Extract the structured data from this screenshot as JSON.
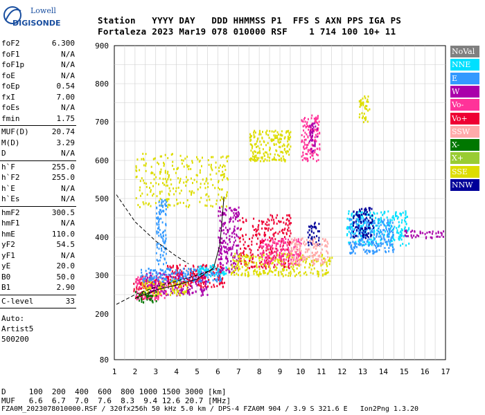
{
  "logo": {
    "top": "Lowell",
    "bottom": "DIGISONDE"
  },
  "header": {
    "line1": "Station   YYYY DAY   DDD HHMMSS P1  FFS S AXN PPS IGA PS",
    "line2": "Fortaleza 2023 Mar19 078 010000 RSF    1 714 100 10+ 11"
  },
  "params": [
    {
      "label": "foF2",
      "value": "6.300"
    },
    {
      "label": "foF1",
      "value": "N/A"
    },
    {
      "label": "foF1p",
      "value": "N/A"
    },
    {
      "label": "foE",
      "value": "N/A"
    },
    {
      "label": "foEp",
      "value": "0.54"
    },
    {
      "label": "fxI",
      "value": "7.00"
    },
    {
      "label": "foEs",
      "value": "N/A"
    },
    {
      "label": "fmin",
      "value": "1.75"
    },
    {
      "label": "MUF(D)",
      "value": "20.74"
    },
    {
      "label": "M(D)",
      "value": "3.29"
    },
    {
      "label": "D",
      "value": "N/A"
    },
    {
      "label": "h`F",
      "value": "255.0"
    },
    {
      "label": "h`F2",
      "value": "255.0"
    },
    {
      "label": "h`E",
      "value": "N/A"
    },
    {
      "label": "h`Es",
      "value": "N/A"
    },
    {
      "label": "hmF2",
      "value": "300.5"
    },
    {
      "label": "hmF1",
      "value": "N/A"
    },
    {
      "label": "hmE",
      "value": "110.0"
    },
    {
      "label": "yF2",
      "value": "54.5"
    },
    {
      "label": "yF1",
      "value": "N/A"
    },
    {
      "label": "yE",
      "value": "20.0"
    },
    {
      "label": "B0",
      "value": "50.0"
    },
    {
      "label": "B1",
      "value": "2.90"
    },
    {
      "label": "C-level",
      "value": "33"
    }
  ],
  "auto": {
    "label": "Auto:",
    "name": "Artist5",
    "version": "500200"
  },
  "legend": [
    {
      "label": "NoVal",
      "color": "#808080"
    },
    {
      "label": "NNE",
      "color": "#00e0ff"
    },
    {
      "label": "E",
      "color": "#3399ff"
    },
    {
      "label": "W",
      "color": "#aa00aa"
    },
    {
      "label": "Vo-",
      "color": "#ff3399"
    },
    {
      "label": "Vo+",
      "color": "#ee0033"
    },
    {
      "label": "SSW",
      "color": "#ffaaaa"
    },
    {
      "label": "X-",
      "color": "#007700"
    },
    {
      "label": "X+",
      "color": "#99cc33"
    },
    {
      "label": "SSE",
      "color": "#dddd00"
    },
    {
      "label": "NNW",
      "color": "#000099"
    }
  ],
  "footer": {
    "d_row": "D     100  200  400  600  800 1000 1500 3000 [km]",
    "muf_row": "MUF   6.6  6.7  7.0  7.6  8.3  9.4 12.6 20.7 [MHz]",
    "file_line": "FZA0M_2023078010000.RSF / 320fx256h 50 kHz 5.0 km / DPS-4 FZA0M 904 / 3.9 S 321.6 E   Ion2Png 1.3.20"
  },
  "chart_data": {
    "type": "scatter",
    "x_ticks": [
      1,
      2,
      3,
      4,
      5,
      6,
      7,
      8,
      9,
      10,
      11,
      12,
      13,
      14,
      15,
      16,
      17
    ],
    "y_ticks": [
      80,
      200,
      300,
      400,
      500,
      600,
      700,
      800,
      900
    ],
    "xlim": [
      1,
      17
    ],
    "ylim": [
      80,
      900
    ],
    "grid": true,
    "legend_position": "right",
    "clusters": [
      {
        "series": "Vo+",
        "x": [
          1.9,
          3.2
        ],
        "y": [
          240,
          300
        ]
      },
      {
        "series": "Vo-",
        "x": [
          2.0,
          3.5
        ],
        "y": [
          240,
          300
        ]
      },
      {
        "series": "W",
        "x": [
          2.5,
          5.5
        ],
        "y": [
          250,
          310
        ]
      },
      {
        "series": "Vo+",
        "x": [
          3.5,
          6.3
        ],
        "y": [
          270,
          330
        ]
      },
      {
        "series": "SSE",
        "x": [
          2.3,
          4.5
        ],
        "y": [
          250,
          290
        ]
      },
      {
        "series": "X-",
        "x": [
          2.0,
          3.0
        ],
        "y": [
          230,
          260
        ]
      },
      {
        "series": "E",
        "x": [
          2.2,
          6.2
        ],
        "y": [
          285,
          320
        ]
      },
      {
        "series": "NNE",
        "x": [
          5.0,
          6.4
        ],
        "y": [
          300,
          330
        ]
      },
      {
        "series": "W",
        "x": [
          6.0,
          7.0
        ],
        "y": [
          310,
          480
        ]
      },
      {
        "series": "Vo+",
        "x": [
          7.0,
          9.5
        ],
        "y": [
          320,
          460
        ]
      },
      {
        "series": "SSE",
        "x": [
          6.5,
          11.5
        ],
        "y": [
          300,
          360
        ]
      },
      {
        "series": "Vo-",
        "x": [
          8.0,
          10.0
        ],
        "y": [
          330,
          400
        ]
      },
      {
        "series": "NNW",
        "x": [
          10.3,
          10.9
        ],
        "y": [
          380,
          440
        ]
      },
      {
        "series": "SSW",
        "x": [
          9.5,
          11.3
        ],
        "y": [
          330,
          400
        ]
      },
      {
        "series": "NNE",
        "x": [
          12.2,
          15.2
        ],
        "y": [
          380,
          470
        ]
      },
      {
        "series": "E",
        "x": [
          12.3,
          14.5
        ],
        "y": [
          360,
          450
        ]
      },
      {
        "series": "NNW",
        "x": [
          12.5,
          13.5
        ],
        "y": [
          400,
          480
        ]
      },
      {
        "series": "W",
        "x": [
          15.0,
          16.9
        ],
        "y": [
          400,
          420
        ]
      },
      {
        "series": "SSE",
        "x": [
          2.0,
          6.5
        ],
        "y": [
          480,
          620
        ]
      },
      {
        "series": "SSE",
        "x": [
          7.5,
          9.5
        ],
        "y": [
          600,
          680
        ]
      },
      {
        "series": "Vo-",
        "x": [
          10.0,
          10.9
        ],
        "y": [
          600,
          720
        ]
      },
      {
        "series": "W",
        "x": [
          10.4,
          10.8
        ],
        "y": [
          620,
          700
        ]
      },
      {
        "series": "E",
        "x": [
          3.0,
          3.5
        ],
        "y": [
          330,
          500
        ]
      },
      {
        "series": "SSE",
        "x": [
          12.8,
          13.3
        ],
        "y": [
          700,
          770
        ]
      }
    ],
    "dashed_curve": {
      "x": [
        1.1,
        2.0,
        3.0,
        4.0,
        4.6
      ],
      "y": [
        510,
        440,
        390,
        350,
        330
      ]
    },
    "dashed_lower": {
      "x": [
        1.1,
        2.0,
        3.0,
        4.0,
        5.0,
        6.0
      ],
      "y": [
        225,
        250,
        270,
        285,
        300,
        320
      ]
    },
    "profile_curve": {
      "x": [
        2.0,
        3.0,
        4.0,
        5.0,
        5.8,
        6.1,
        6.3
      ],
      "y": [
        240,
        262,
        275,
        290,
        320,
        380,
        505
      ]
    }
  }
}
